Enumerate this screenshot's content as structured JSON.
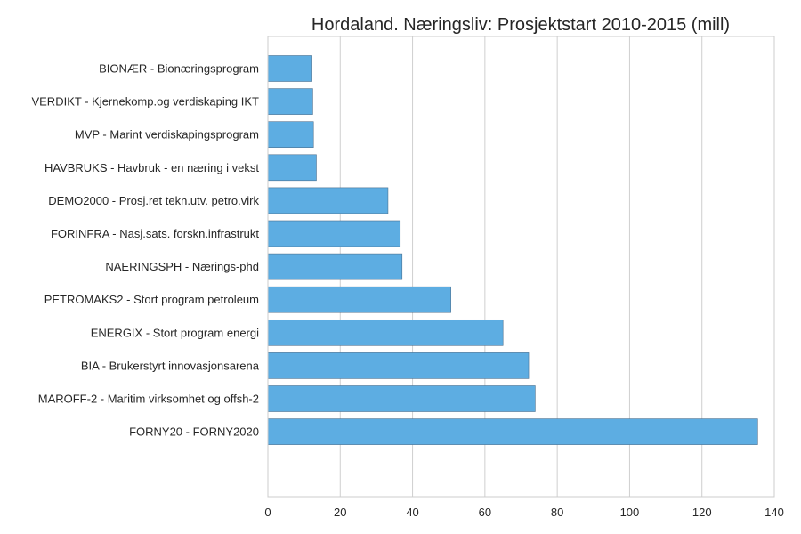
{
  "chart_data": {
    "type": "bar",
    "orientation": "horizontal",
    "title": "Hordaland. Næringsliv: Prosjektstart 2010-2015 (mill)",
    "xlabel": "",
    "ylabel": "",
    "xlim": [
      0,
      140
    ],
    "xticks": [
      0,
      20,
      40,
      60,
      80,
      100,
      120,
      140
    ],
    "grid": "vertical",
    "legend": "none",
    "bar_color": "#5DADE2",
    "categories": [
      "BIONÆR - Bionæringsprogram",
      "VERDIKT - Kjernekomp.og verdiskaping IKT",
      "MVP - Marint verdiskapingsprogram",
      "HAVBRUKS - Havbruk - en næring i vekst",
      "DEMO2000 - Prosj.ret tekn.utv. petro.virk",
      "FORINFRA - Nasj.sats. forskn.infrastrukt",
      "NAERINGSPH - Nærings-phd",
      "PETROMAKS2 - Stort program petroleum",
      "ENERGIX - Stort program energi",
      "BIA - Brukerstyrt innovasjonsarena",
      "MAROFF-2 - Maritim virksomhet og offsh-2",
      "FORNY20 - FORNY2020"
    ],
    "values": [
      12.2,
      12.4,
      12.6,
      13.4,
      33.2,
      36.6,
      37.1,
      50.6,
      65.0,
      72.1,
      73.9,
      135.4
    ]
  }
}
